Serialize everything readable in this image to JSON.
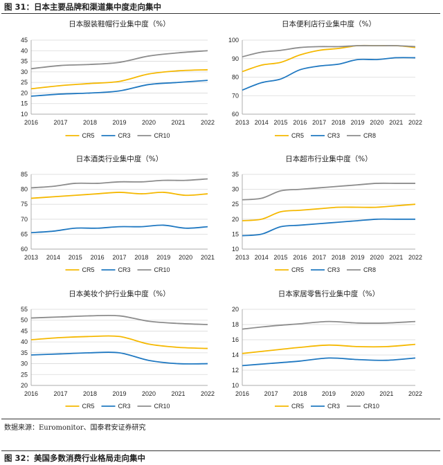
{
  "figure": {
    "title": "图 31：日本主要品牌和渠道集中度走向集中",
    "source": "数据来源：Euromonitor、国泰君安证券研究",
    "next_title": "图 32：美国多数消费行业格局走向集中"
  },
  "colors": {
    "CR5": "#F5B800",
    "CR3": "#1F78C1",
    "CR10": "#8C8C8C",
    "CR8": "#8C8C8C"
  },
  "chart_data": [
    {
      "type": "line",
      "title": "日本服装鞋帽行业集中度（%）",
      "x": [
        "2016",
        "2017",
        "2018",
        "2019",
        "2020",
        "2021",
        "2022"
      ],
      "ylim": [
        10,
        45
      ],
      "yticks": [
        10,
        15,
        20,
        25,
        30,
        35,
        40,
        45
      ],
      "series": [
        {
          "name": "CR5",
          "values": [
            22,
            23.5,
            24.5,
            25.5,
            29,
            30.5,
            31
          ]
        },
        {
          "name": "CR3",
          "values": [
            18.5,
            19.5,
            20,
            21,
            24,
            25,
            26
          ]
        },
        {
          "name": "CR10",
          "values": [
            31.5,
            33,
            33.5,
            34.5,
            37.5,
            39,
            40
          ]
        }
      ],
      "legend": [
        "CR5",
        "CR3",
        "CR10"
      ]
    },
    {
      "type": "line",
      "title": "日本便利店行业集中度（%）",
      "x": [
        "2013",
        "2014",
        "2015",
        "2016",
        "2017",
        "2018",
        "2019",
        "2020",
        "2021",
        "2022"
      ],
      "ylim": [
        60,
        100
      ],
      "yticks": [
        60,
        70,
        80,
        90,
        100
      ],
      "series": [
        {
          "name": "CR5",
          "values": [
            83,
            86.5,
            88,
            92,
            94.5,
            95.5,
            97,
            97,
            97,
            96
          ]
        },
        {
          "name": "CR3",
          "values": [
            73,
            77,
            79,
            84,
            86,
            87,
            89.5,
            89.5,
            90.5,
            90.5
          ]
        },
        {
          "name": "CR8",
          "values": [
            91,
            93.5,
            94.5,
            96,
            96.5,
            96.5,
            97,
            97,
            97,
            96.5
          ]
        }
      ],
      "legend": [
        "CR5",
        "CR3",
        "CR8"
      ]
    },
    {
      "type": "line",
      "title": "日本酒类行业集中度（%）",
      "x": [
        "2013",
        "2014",
        "2015",
        "2016",
        "2017",
        "2018",
        "2019",
        "2020",
        "2021"
      ],
      "ylim": [
        60,
        85
      ],
      "yticks": [
        60,
        65,
        70,
        75,
        80,
        85
      ],
      "series": [
        {
          "name": "CR5",
          "values": [
            77,
            77.5,
            78,
            78.5,
            79,
            78.5,
            79,
            78,
            78.5
          ]
        },
        {
          "name": "CR3",
          "values": [
            65.5,
            66,
            67,
            67,
            67.5,
            67.5,
            68,
            67,
            67.5
          ]
        },
        {
          "name": "CR10",
          "values": [
            80.5,
            81,
            82,
            82,
            82.5,
            82.5,
            83,
            83,
            83.5
          ]
        }
      ],
      "legend": [
        "CR5",
        "CR3",
        "CR10"
      ]
    },
    {
      "type": "line",
      "title": "日本超市行业集中度（%）",
      "x": [
        "2013",
        "2014",
        "2015",
        "2016",
        "2017",
        "2018",
        "2019",
        "2020",
        "2021",
        "2022"
      ],
      "ylim": [
        10,
        35
      ],
      "yticks": [
        10,
        15,
        20,
        25,
        30,
        35
      ],
      "series": [
        {
          "name": "CR5",
          "values": [
            19.5,
            20,
            22.5,
            23,
            23.5,
            24,
            24,
            24,
            24.5,
            25
          ]
        },
        {
          "name": "CR3",
          "values": [
            14.5,
            15,
            17.5,
            18,
            18.5,
            19,
            19.5,
            20,
            20,
            20
          ]
        },
        {
          "name": "CR8",
          "values": [
            26.5,
            27,
            29.5,
            30,
            30.5,
            31,
            31.5,
            32,
            32,
            32
          ]
        }
      ],
      "legend": [
        "CR5",
        "CR3",
        "CR8"
      ]
    },
    {
      "type": "line",
      "title": "日本美妆个护行业集中度（%）",
      "x": [
        "2016",
        "2017",
        "2018",
        "2019",
        "2020",
        "2021",
        "2022"
      ],
      "ylim": [
        20,
        55
      ],
      "yticks": [
        20,
        25,
        30,
        35,
        40,
        45,
        50,
        55
      ],
      "series": [
        {
          "name": "CR5",
          "values": [
            41,
            42,
            42.5,
            42.5,
            39,
            37.5,
            37
          ]
        },
        {
          "name": "CR3",
          "values": [
            34,
            34.5,
            35,
            35,
            31.5,
            30,
            30
          ]
        },
        {
          "name": "CR10",
          "values": [
            51,
            51.5,
            52,
            52,
            49.5,
            48.5,
            48
          ]
        }
      ],
      "legend": [
        "CR5",
        "CR3",
        "CR10"
      ]
    },
    {
      "type": "line",
      "title": "日本家居零售行业集中度（%）",
      "x": [
        "2016",
        "2017",
        "2018",
        "2019",
        "2020",
        "2021",
        "2022"
      ],
      "ylim": [
        10,
        20
      ],
      "yticks": [
        10,
        12,
        14,
        16,
        18,
        20
      ],
      "series": [
        {
          "name": "CR5",
          "values": [
            14.2,
            14.6,
            15,
            15.3,
            15.1,
            15.1,
            15.4
          ]
        },
        {
          "name": "CR3",
          "values": [
            12.6,
            12.9,
            13.2,
            13.6,
            13.4,
            13.3,
            13.6
          ]
        },
        {
          "name": "CR10",
          "values": [
            17.4,
            17.8,
            18.1,
            18.4,
            18.2,
            18.2,
            18.4
          ]
        }
      ],
      "legend": [
        "CR5",
        "CR3",
        "CR10"
      ]
    }
  ]
}
